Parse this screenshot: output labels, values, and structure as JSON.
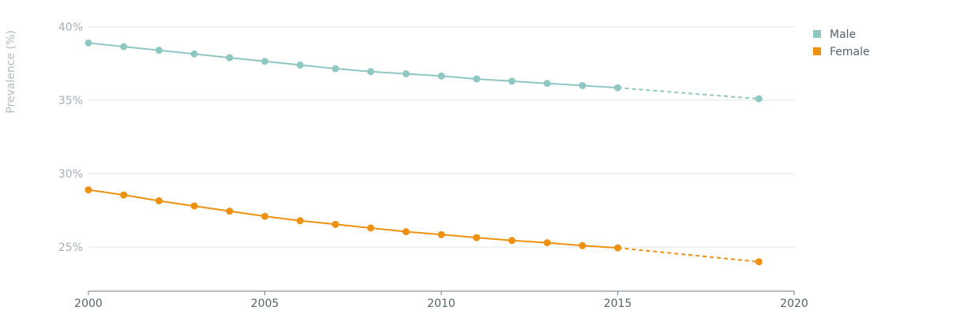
{
  "chart_data": {
    "type": "line",
    "title": "",
    "xlabel": "",
    "ylabel": "Prevalence (%)",
    "x": [
      2000,
      2001,
      2002,
      2003,
      2004,
      2005,
      2006,
      2007,
      2008,
      2009,
      2010,
      2011,
      2012,
      2013,
      2014,
      2015,
      2019
    ],
    "xticks": [
      "2000",
      "2005",
      "2010",
      "2015",
      "2020"
    ],
    "xlim": [
      2000,
      2020
    ],
    "yticks": [
      "25%",
      "30%",
      "35%",
      "40%"
    ],
    "ytick_values": [
      25,
      30,
      35,
      40
    ],
    "ylim": [
      22.0,
      40.0
    ],
    "projection_from_x": 2015,
    "legend_position": "top-right",
    "grid": true,
    "series": [
      {
        "name": "Male",
        "color": "#8fc7c3",
        "values": [
          38.9,
          38.65,
          38.4,
          38.15,
          37.9,
          37.65,
          37.4,
          37.15,
          36.95,
          36.8,
          36.65,
          36.45,
          36.3,
          36.15,
          36.0,
          35.85,
          35.1
        ]
      },
      {
        "name": "Female",
        "color": "#ee9111",
        "values": [
          28.9,
          28.55,
          28.15,
          27.8,
          27.45,
          27.1,
          26.8,
          26.55,
          26.3,
          26.05,
          25.85,
          25.65,
          25.45,
          25.3,
          25.1,
          24.95,
          24.0
        ]
      }
    ]
  }
}
